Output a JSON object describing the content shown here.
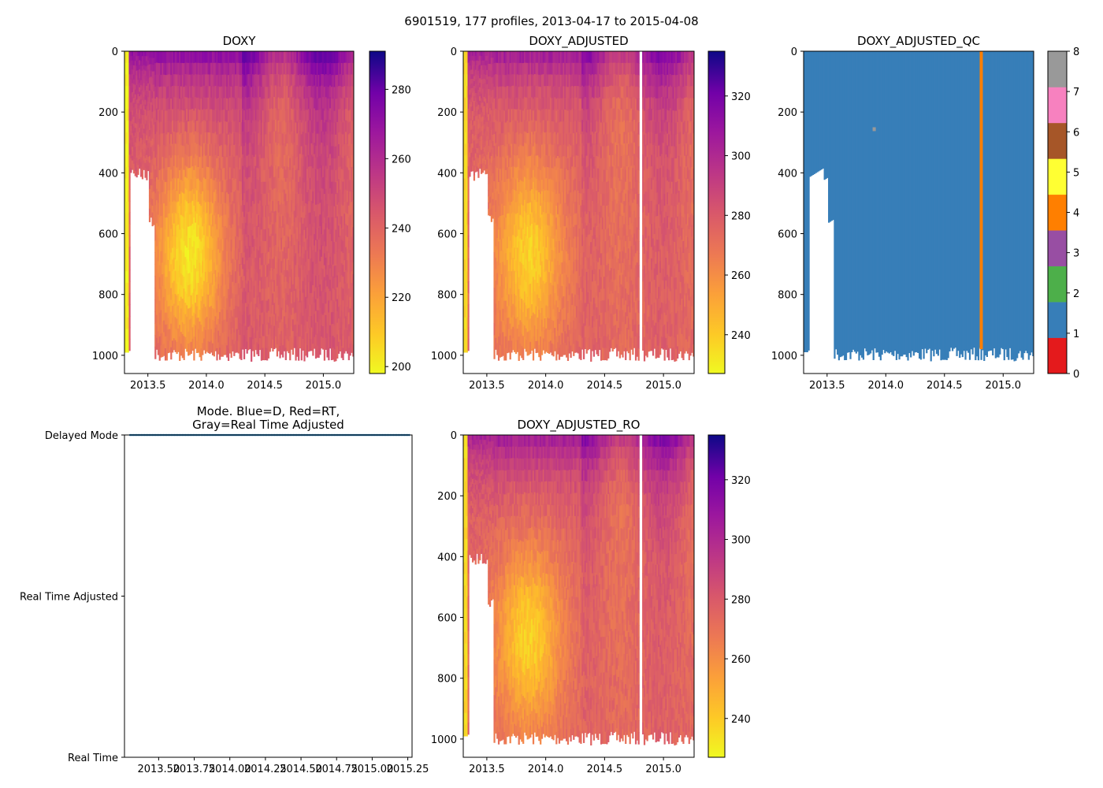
{
  "figure_title": "6901519, 177 profiles, 2013-04-17 to 2015-04-08",
  "chart_data": [
    {
      "id": "doxy",
      "type": "heatmap",
      "title": "DOXY",
      "x_range": [
        2013.3,
        2015.26
      ],
      "y_range": [
        1060,
        0
      ],
      "x_ticks": [
        2013.5,
        2014.0,
        2014.5,
        2015.0
      ],
      "x_tick_labels": [
        "2013.5",
        "2014.0",
        "2014.5",
        "2015.0"
      ],
      "y_ticks": [
        0,
        200,
        400,
        600,
        800,
        1000
      ],
      "y_tick_labels": [
        "0",
        "200",
        "400",
        "600",
        "800",
        "1000"
      ],
      "colormap": "plasma_r",
      "colorbar_range": [
        198,
        291
      ],
      "colorbar_ticks": [
        200,
        220,
        240,
        260,
        280
      ],
      "colorbar_tick_labels": [
        "200",
        "220",
        "240",
        "260",
        "280"
      ],
      "surface_value": 262,
      "core_value": 205,
      "deep_value": 238
    },
    {
      "id": "doxy_adjusted",
      "type": "heatmap",
      "title": "DOXY_ADJUSTED",
      "x_range": [
        2013.3,
        2015.26
      ],
      "y_range": [
        1060,
        0
      ],
      "x_ticks": [
        2013.5,
        2014.0,
        2014.5,
        2015.0
      ],
      "x_tick_labels": [
        "2013.5",
        "2014.0",
        "2014.5",
        "2015.0"
      ],
      "y_ticks": [
        0,
        200,
        400,
        600,
        800,
        1000
      ],
      "y_tick_labels": [
        "0",
        "200",
        "400",
        "600",
        "800",
        "1000"
      ],
      "colormap": "plasma_r",
      "colorbar_range": [
        227,
        335
      ],
      "colorbar_ticks": [
        240,
        260,
        280,
        300,
        320
      ],
      "colorbar_tick_labels": [
        "240",
        "260",
        "280",
        "300",
        "320"
      ],
      "gap_at_x": 2014.81,
      "surface_value": 295,
      "core_value": 240,
      "deep_value": 270
    },
    {
      "id": "doxy_adjusted_qc",
      "type": "heatmap",
      "title": "DOXY_ADJUSTED_QC",
      "x_range": [
        2013.3,
        2015.26
      ],
      "y_range": [
        1060,
        0
      ],
      "x_ticks": [
        2013.5,
        2014.0,
        2014.5,
        2015.0
      ],
      "x_tick_labels": [
        "2013.5",
        "2014.0",
        "2014.5",
        "2015.0"
      ],
      "y_ticks": [
        0,
        200,
        400,
        600,
        800,
        1000
      ],
      "y_tick_labels": [
        "0",
        "200",
        "400",
        "600",
        "800",
        "1000"
      ],
      "dominant_flag": 1,
      "flag4_column_x": 2014.8,
      "colorbar_range": [
        0,
        8
      ],
      "colorbar_ticks": [
        0,
        1,
        2,
        3,
        4,
        5,
        6,
        7,
        8
      ],
      "colorbar_tick_labels": [
        "0",
        "1",
        "2",
        "3",
        "4",
        "5",
        "6",
        "7",
        "8"
      ],
      "flag_colors": [
        "#e41a1c",
        "#377eb8",
        "#4daf4a",
        "#984ea3",
        "#ff7f00",
        "#ffff33",
        "#a65628",
        "#f781bf"
      ],
      "flag8_color": "#999999"
    },
    {
      "id": "mode",
      "type": "scatter",
      "title": "Mode. Blue=D, Red=RT,\nGray=Real Time Adjusted",
      "x_range": [
        2013.26,
        2015.28
      ],
      "y_categories": [
        "Real Time",
        "Real Time Adjusted",
        "Delayed Mode"
      ],
      "x_ticks": [
        2013.5,
        2013.75,
        2014.0,
        2014.25,
        2014.5,
        2014.75,
        2015.0,
        2015.25
      ],
      "x_tick_labels": [
        "2013.50",
        "2013.75",
        "2014.00",
        "2014.25",
        "2014.50",
        "2014.75",
        "2015.00",
        "2015.25"
      ],
      "series": [
        {
          "name": "Delayed Mode",
          "category": "Delayed Mode",
          "x_start": 2013.3,
          "x_end": 2015.26,
          "n_points": 177,
          "color": "#1f77b4"
        }
      ]
    },
    {
      "id": "doxy_adjusted_ro",
      "type": "heatmap",
      "title": "DOXY_ADJUSTED_RO",
      "x_range": [
        2013.3,
        2015.26
      ],
      "y_range": [
        1060,
        0
      ],
      "x_ticks": [
        2013.5,
        2014.0,
        2014.5,
        2015.0
      ],
      "x_tick_labels": [
        "2013.5",
        "2014.0",
        "2014.5",
        "2015.0"
      ],
      "y_ticks": [
        0,
        200,
        400,
        600,
        800,
        1000
      ],
      "y_tick_labels": [
        "0",
        "200",
        "400",
        "600",
        "800",
        "1000"
      ],
      "colormap": "plasma_r",
      "colorbar_range": [
        227,
        335
      ],
      "colorbar_ticks": [
        240,
        260,
        280,
        300,
        320
      ],
      "colorbar_tick_labels": [
        "240",
        "260",
        "280",
        "300",
        "320"
      ],
      "gap_at_x": 2014.81,
      "surface_value": 295,
      "core_value": 240,
      "deep_value": 270
    }
  ]
}
